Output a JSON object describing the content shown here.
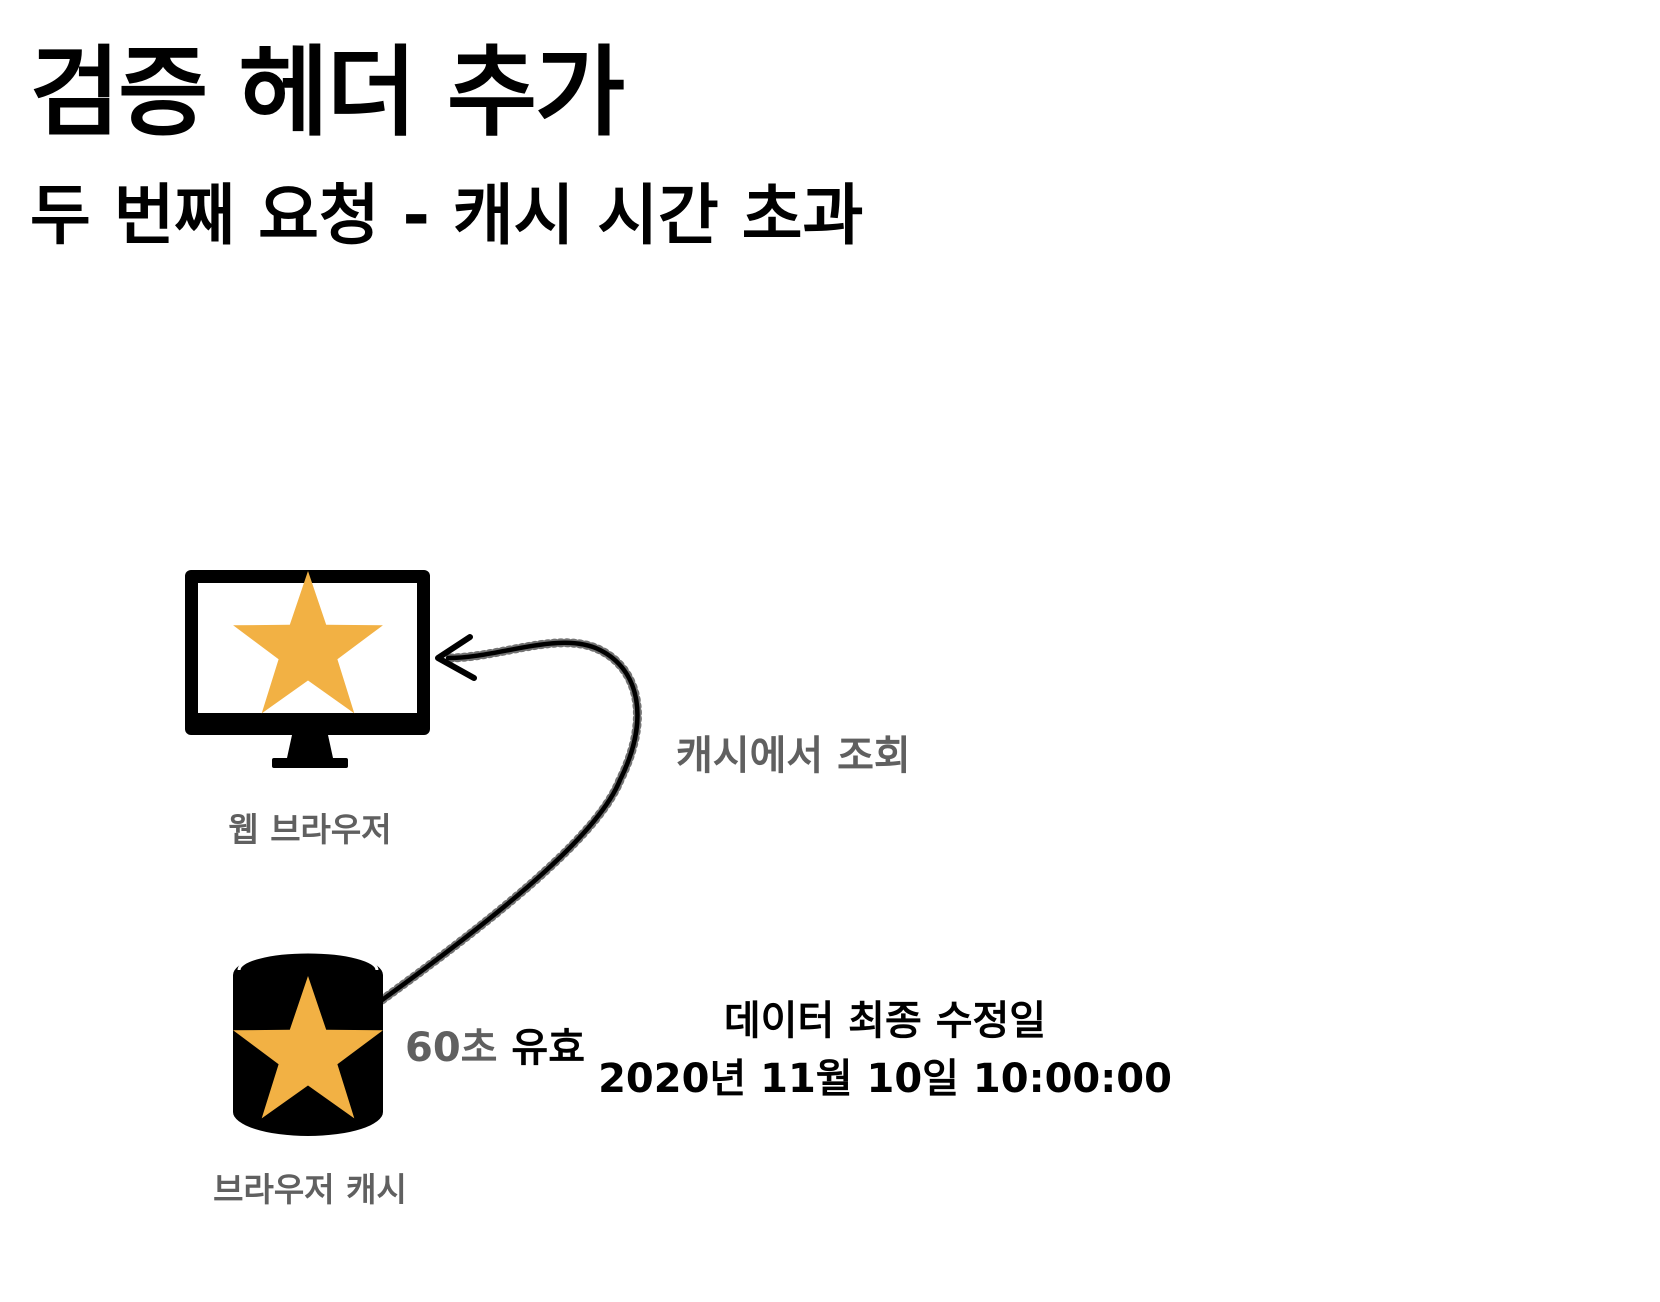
{
  "header": {
    "title": "검증 헤더 추가",
    "subtitle": "두 번째 요청 - 캐시 시간 초과"
  },
  "nodes": {
    "browser": {
      "label": "웹 브라우저",
      "icon": "monitor-icon"
    },
    "cache": {
      "label": "브라우저 캐시",
      "icon": "database-icon"
    }
  },
  "edge": {
    "label": "캐시에서 조회"
  },
  "cache_info": {
    "max_age_number": "60초",
    "max_age_word": "유효",
    "last_modified_label": "데이터 최종 수정일",
    "last_modified_value": "2020년 11월 10일 10:00:00"
  },
  "colors": {
    "star": "#F2B144",
    "icon": "#000000",
    "label_gray": "#606060",
    "text": "#000000"
  }
}
